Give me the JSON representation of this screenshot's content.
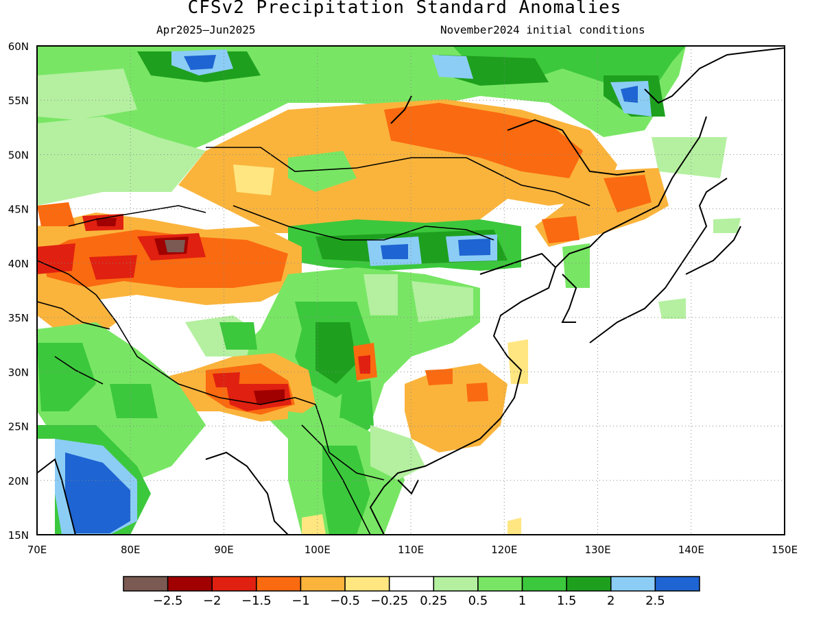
{
  "title": "CFSv2 Precipitation Standard Anomalies",
  "period": "Apr2025—Jun2025",
  "initial_conditions": "November2024 initial conditions",
  "axes": {
    "lon_range": [
      70,
      150
    ],
    "lat_range": [
      15,
      60
    ],
    "lon_ticks": [
      "70E",
      "80E",
      "90E",
      "100E",
      "110E",
      "120E",
      "130E",
      "140E",
      "150E"
    ],
    "lat_ticks": [
      "15N",
      "20N",
      "25N",
      "30N",
      "35N",
      "40N",
      "45N",
      "50N",
      "55N",
      "60N"
    ],
    "grid": "dotted"
  },
  "colorbar": {
    "labels": [
      "−2.5",
      "−2",
      "−1.5",
      "−1",
      "−0.5",
      "−0.25",
      "0.25",
      "0.5",
      "1",
      "1.5",
      "2",
      "2.5"
    ],
    "colors": [
      "#7a5a52",
      "#a00000",
      "#e02010",
      "#fa6a10",
      "#fab43c",
      "#ffe680",
      "#ffffff",
      "#b4f0a0",
      "#78e664",
      "#3cc83c",
      "#1ea01e",
      "#8ccdf5",
      "#1e64d2"
    ]
  },
  "anomaly_regions": [
    {
      "name": "Siberia green band",
      "lon": [
        70,
        150
      ],
      "lat": [
        50,
        60
      ],
      "value": 1.0
    },
    {
      "name": "Lake Baikal blue",
      "lon": [
        85,
        95
      ],
      "lat": [
        57,
        60
      ],
      "value": 2.5
    },
    {
      "name": "Okhotsk blue",
      "lon": [
        131,
        135
      ],
      "lat": [
        53,
        57
      ],
      "value": 2.5
    },
    {
      "name": "Mongolia dry",
      "lon": [
        92,
        135
      ],
      "lat": [
        46,
        53
      ],
      "value": -1.0
    },
    {
      "name": "Tarim Basin dry",
      "lon": [
        70,
        100
      ],
      "lat": [
        37,
        43
      ],
      "value": -1.5
    },
    {
      "name": "Inner Mongolia wet",
      "lon": [
        102,
        124
      ],
      "lat": [
        39,
        43
      ],
      "value": 2.0
    },
    {
      "name": "NE China dry",
      "lon": [
        124,
        137
      ],
      "lat": [
        42,
        48
      ],
      "value": -1.0
    },
    {
      "name": "Tibetan Plateau wet",
      "lon": [
        96,
        112
      ],
      "lat": [
        25,
        38
      ],
      "value": 1.5
    },
    {
      "name": "Himalaya dry",
      "lon": [
        82,
        100
      ],
      "lat": [
        26,
        31
      ],
      "value": -1.5
    },
    {
      "name": "SE China dry",
      "lon": [
        110,
        121
      ],
      "lat": [
        24,
        29
      ],
      "value": -0.5
    },
    {
      "name": "India wet",
      "lon": [
        72,
        87
      ],
      "lat": [
        15,
        26
      ],
      "value": 2.5
    }
  ]
}
